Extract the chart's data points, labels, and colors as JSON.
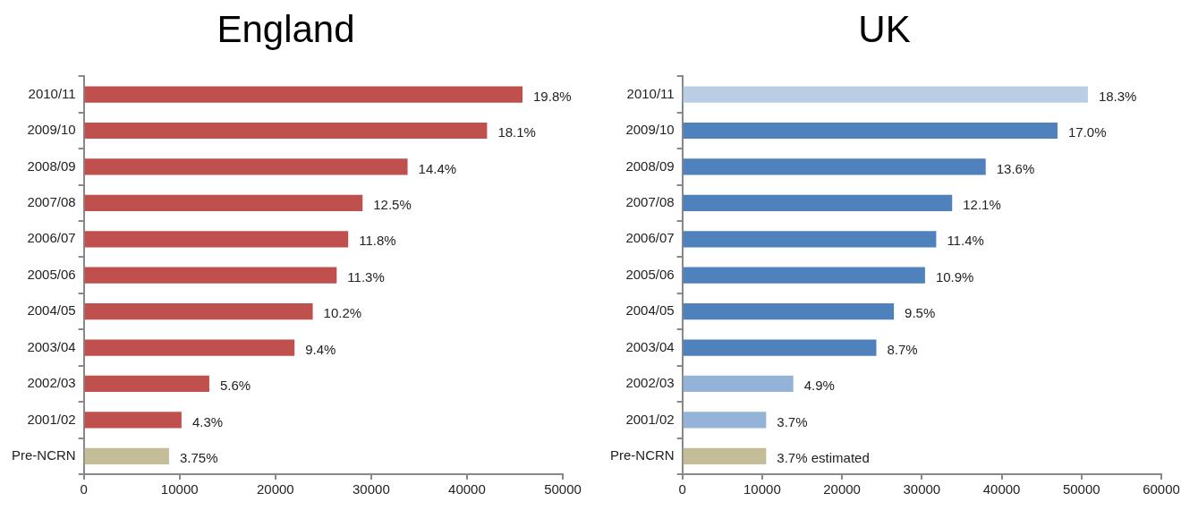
{
  "chart_data": [
    {
      "type": "bar",
      "orientation": "horizontal",
      "title": "England",
      "categories": [
        "2010/11",
        "2009/10",
        "2008/09",
        "2007/08",
        "2006/07",
        "2005/06",
        "2004/05",
        "2003/04",
        "2002/03",
        "2001/02",
        "Pre-NCRN"
      ],
      "values": [
        45800,
        42100,
        33800,
        29100,
        27600,
        26400,
        23900,
        22000,
        13100,
        10200,
        8900
      ],
      "colors": [
        "#c0504d",
        "#c0504d",
        "#c0504d",
        "#c0504d",
        "#c0504d",
        "#c0504d",
        "#c0504d",
        "#c0504d",
        "#c0504d",
        "#c0504d",
        "#c4bd97"
      ],
      "annotations": [
        {
          "text": "19.8%",
          "x": 45800,
          "y": "2010/11"
        },
        {
          "text": "18.1%",
          "x": 42100,
          "y": "2009/10"
        },
        {
          "text": "14.4%",
          "x": 33800,
          "y": "2008/09"
        },
        {
          "text": "12.5%",
          "x": 29100,
          "y": "2007/08"
        },
        {
          "text": "11.8%",
          "x": 27600,
          "y": "2006/07"
        },
        {
          "text": "11.3%",
          "x": 26400,
          "y": "2005/06"
        },
        {
          "text": "10.2%",
          "x": 23900,
          "y": "2004/05"
        },
        {
          "text": "9.4%",
          "x": 22000,
          "y": "2003/04"
        },
        {
          "text": "5.6%",
          "x": 13100,
          "y": "2002/03"
        },
        {
          "text": "4.3%",
          "x": 10200,
          "y": "2001/02"
        },
        {
          "text": "3.75%",
          "x": 8900,
          "y": "Pre-NCRN"
        }
      ],
      "xlim": [
        0,
        50000
      ],
      "xticks": [
        0,
        10000,
        20000,
        30000,
        40000,
        50000
      ],
      "grid": false,
      "legend": false
    },
    {
      "type": "bar",
      "orientation": "horizontal",
      "title": "UK",
      "categories": [
        "2010/11",
        "2009/10",
        "2008/09",
        "2007/08",
        "2006/07",
        "2005/06",
        "2004/05",
        "2003/04",
        "2002/03",
        "2001/02",
        "Pre-NCRN"
      ],
      "values": [
        50800,
        47000,
        38000,
        33800,
        31800,
        30400,
        26500,
        24300,
        13900,
        10500,
        10500
      ],
      "colors": [
        "#b9cde5",
        "#4f81bd",
        "#4f81bd",
        "#4f81bd",
        "#4f81bd",
        "#4f81bd",
        "#4f81bd",
        "#4f81bd",
        "#95b3d7",
        "#95b3d7",
        "#c4bd97"
      ],
      "annotations": [
        {
          "text": "18.3%",
          "x": 50800,
          "y": "2010/11"
        },
        {
          "text": "17.0%",
          "x": 47000,
          "y": "2009/10"
        },
        {
          "text": "13.6%",
          "x": 38000,
          "y": "2008/09"
        },
        {
          "text": "12.1%",
          "x": 33800,
          "y": "2007/08"
        },
        {
          "text": "11.4%",
          "x": 31800,
          "y": "2006/07"
        },
        {
          "text": "10.9%",
          "x": 30400,
          "y": "2005/06"
        },
        {
          "text": "9.5%",
          "x": 26500,
          "y": "2004/05"
        },
        {
          "text": "8.7%",
          "x": 24300,
          "y": "2003/04"
        },
        {
          "text": "4.9%",
          "x": 13900,
          "y": "2002/03"
        },
        {
          "text": "3.7%",
          "x": 10500,
          "y": "2001/02"
        },
        {
          "text": "3.7% estimated",
          "x": 10500,
          "y": "Pre-NCRN"
        }
      ],
      "xlim": [
        0,
        60000
      ],
      "xticks": [
        0,
        10000,
        20000,
        30000,
        40000,
        50000,
        60000
      ],
      "grid": false,
      "legend": false
    }
  ]
}
